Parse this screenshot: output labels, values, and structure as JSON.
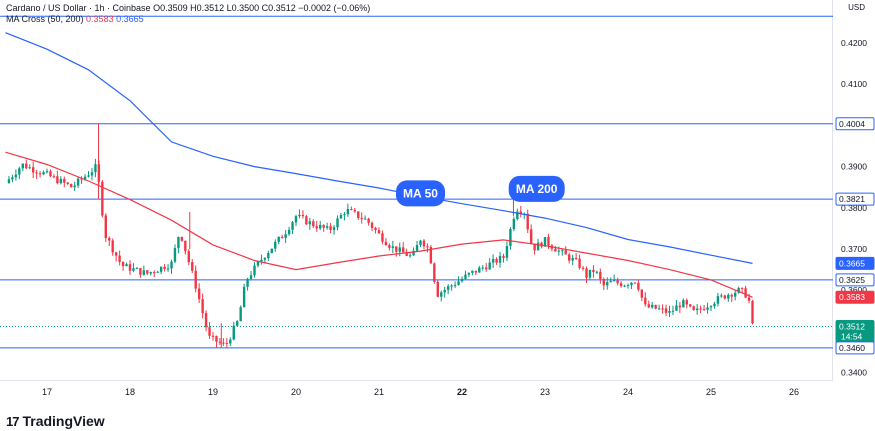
{
  "legend": {
    "symbol_line": "Cardano / US Dollar · 1h · Coinbase",
    "ohlc": "O0.3509 H0.3512 L0.3500 C0.3512 −0.0002 (−0.06%)",
    "indicator_name": "MA Cross (50, 200)",
    "ma50_value": "0.3583",
    "ma200_value": "0.3665"
  },
  "currency": "USD",
  "logo_text": "TradingView",
  "logo_mark": "17",
  "colors": {
    "up": "#089981",
    "down": "#f23645",
    "ma50": "#f23645",
    "ma200": "#2962ff",
    "hline": "#2962ff",
    "label_blue": "#2962ff"
  },
  "chart_data": {
    "type": "candlestick",
    "title": "Cardano / US Dollar · 1h · Coinbase",
    "ylim": [
      0.338,
      0.4265
    ],
    "y_ticks": [
      "0.4200",
      "0.4100",
      "0.3900",
      "0.3800",
      "0.3700",
      "0.3600",
      "0.3400"
    ],
    "x_ticks": [
      "17",
      "18",
      "19",
      "20",
      "21",
      "22",
      "23",
      "24",
      "25",
      "26"
    ],
    "horizontal_levels": [
      0.4265,
      0.4004,
      0.3821,
      0.3625,
      0.346
    ],
    "price_labels": [
      {
        "text": "0.4004",
        "value": 0.4004,
        "style": "outline"
      },
      {
        "text": "0.3821",
        "value": 0.3821,
        "style": "outline"
      },
      {
        "text": "0.3665",
        "value": 0.3665,
        "style": "blue"
      },
      {
        "text": "0.3625",
        "value": 0.3625,
        "style": "outline"
      },
      {
        "text": "0.3583",
        "value": 0.3583,
        "style": "red"
      },
      {
        "text": "0.3512",
        "value": 0.3512,
        "style": "green",
        "sub": "14:54"
      },
      {
        "text": "0.3460",
        "value": 0.346,
        "style": "outline"
      }
    ],
    "annotations": [
      {
        "text": "MA 50",
        "x": 21.5,
        "y": 0.3835
      },
      {
        "text": "MA 200",
        "x": 22.9,
        "y": 0.3846
      }
    ],
    "ma200": [
      [
        16.5,
        0.4225
      ],
      [
        17,
        0.4185
      ],
      [
        17.5,
        0.4135
      ],
      [
        18,
        0.406
      ],
      [
        18.5,
        0.396
      ],
      [
        19,
        0.3925
      ],
      [
        19.5,
        0.39
      ],
      [
        20,
        0.3883
      ],
      [
        20.5,
        0.3865
      ],
      [
        21,
        0.3848
      ],
      [
        21.5,
        0.3828
      ],
      [
        22,
        0.381
      ],
      [
        22.5,
        0.3793
      ],
      [
        23,
        0.3775
      ],
      [
        23.5,
        0.3752
      ],
      [
        24,
        0.3723
      ],
      [
        24.5,
        0.3705
      ],
      [
        25,
        0.3685
      ],
      [
        25.5,
        0.3665
      ]
    ],
    "ma50": [
      [
        16.5,
        0.3935
      ],
      [
        17,
        0.3905
      ],
      [
        17.5,
        0.3865
      ],
      [
        18,
        0.382
      ],
      [
        18.5,
        0.377
      ],
      [
        19,
        0.371
      ],
      [
        19.5,
        0.3672
      ],
      [
        20,
        0.365
      ],
      [
        20.5,
        0.3667
      ],
      [
        21,
        0.3683
      ],
      [
        21.5,
        0.3695
      ],
      [
        22,
        0.3712
      ],
      [
        22.5,
        0.3722
      ],
      [
        23,
        0.3708
      ],
      [
        23.5,
        0.369
      ],
      [
        24,
        0.3672
      ],
      [
        24.5,
        0.365
      ],
      [
        25,
        0.3625
      ],
      [
        25.5,
        0.3583
      ]
    ],
    "price_path": [
      [
        16.5,
        0.386
      ],
      [
        16.7,
        0.3905
      ],
      [
        17.0,
        0.388
      ],
      [
        17.3,
        0.385
      ],
      [
        17.6,
        0.39
      ],
      [
        17.7,
        0.3735
      ],
      [
        17.9,
        0.366
      ],
      [
        18.2,
        0.364
      ],
      [
        18.5,
        0.3665
      ],
      [
        18.6,
        0.3745
      ],
      [
        18.8,
        0.3605
      ],
      [
        18.95,
        0.3485
      ],
      [
        19.15,
        0.3465
      ],
      [
        19.3,
        0.3525
      ],
      [
        19.4,
        0.3625
      ],
      [
        19.6,
        0.368
      ],
      [
        19.85,
        0.3735
      ],
      [
        20.0,
        0.378
      ],
      [
        20.2,
        0.376
      ],
      [
        20.4,
        0.3745
      ],
      [
        20.6,
        0.3795
      ],
      [
        20.85,
        0.377
      ],
      [
        21.0,
        0.3735
      ],
      [
        21.15,
        0.3705
      ],
      [
        21.4,
        0.368
      ],
      [
        21.5,
        0.3725
      ],
      [
        21.6,
        0.37
      ],
      [
        21.7,
        0.359
      ],
      [
        21.9,
        0.3615
      ],
      [
        22.1,
        0.364
      ],
      [
        22.3,
        0.366
      ],
      [
        22.5,
        0.368
      ],
      [
        22.65,
        0.38
      ],
      [
        22.75,
        0.379
      ],
      [
        22.85,
        0.37
      ],
      [
        23.0,
        0.372
      ],
      [
        23.2,
        0.369
      ],
      [
        23.4,
        0.3665
      ],
      [
        23.5,
        0.3635
      ],
      [
        23.6,
        0.365
      ],
      [
        23.7,
        0.361
      ],
      [
        23.8,
        0.362
      ],
      [
        23.95,
        0.3615
      ],
      [
        24.1,
        0.3625
      ],
      [
        24.2,
        0.356
      ],
      [
        24.35,
        0.3555
      ],
      [
        24.5,
        0.3545
      ],
      [
        24.65,
        0.357
      ],
      [
        24.8,
        0.3545
      ],
      [
        25.0,
        0.357
      ],
      [
        25.2,
        0.359
      ],
      [
        25.35,
        0.36
      ],
      [
        25.45,
        0.3585
      ],
      [
        25.5,
        0.3512
      ]
    ]
  }
}
